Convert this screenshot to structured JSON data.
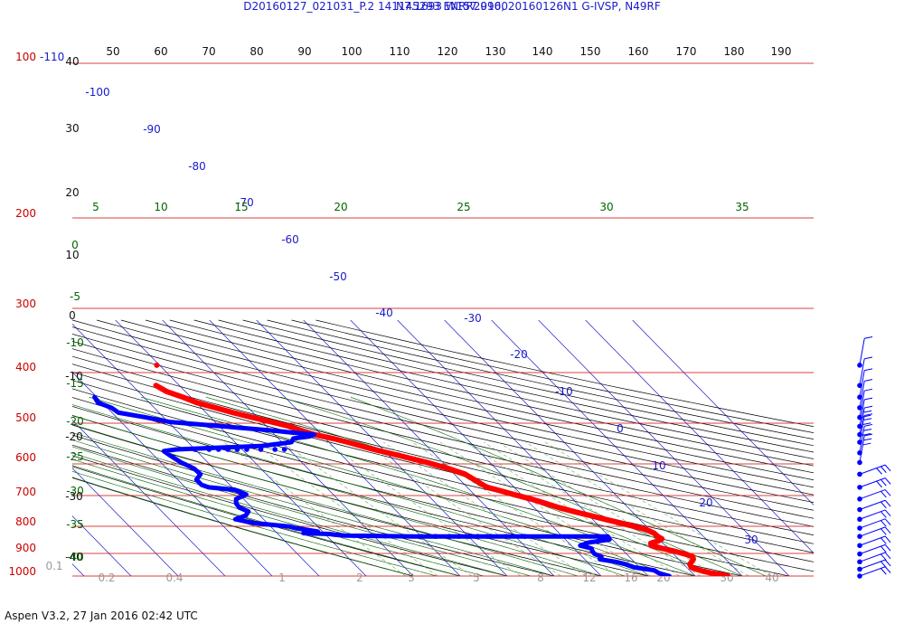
{
  "header": {
    "line1": "D20160127_021031_P.2 141145293 ENRR2016, 20160126N1 G-IVSP, N49RF",
    "line2": "N7.1693 W157.9900"
  },
  "footer": "Aspen V3.2, 27 Jan 2016  02:42 UTC",
  "colors": {
    "temperature": "#ff0000",
    "dewpoint": "#0000ff",
    "isobar": "#cc0000",
    "isotherm": "#1a1acc",
    "dry_adiabat": "#000000",
    "moist_adiabat": "#006600",
    "mixing_ratio": "#66aa66"
  },
  "chart_data": {
    "type": "skew-t",
    "pressure_axis": {
      "unit": "hPa",
      "scale": "log",
      "range": [
        1000,
        100
      ],
      "tick_labels": [
        "1000",
        "900",
        "800",
        "700",
        "600",
        "500",
        "400",
        "300",
        "200",
        "100"
      ],
      "top_extra_label": "-110"
    },
    "temperature_top_ticks": [
      "50",
      "60",
      "70",
      "80",
      "90",
      "100",
      "110",
      "120",
      "130",
      "140",
      "150",
      "160",
      "170",
      "180",
      "190"
    ],
    "isotherm_labels": [
      "-100",
      "-90",
      "-80",
      "-70",
      "-60",
      "-50",
      "-40",
      "-30",
      "-20",
      "-10",
      "0",
      "10",
      "20",
      "30"
    ],
    "dry_adiabat_labels": [
      "40",
      "30",
      "20",
      "10",
      "0",
      "-10",
      "-20",
      "-30",
      "-40"
    ],
    "moist_adiabat_labels": [
      "5",
      "10",
      "15",
      "20",
      "25",
      "30",
      "35"
    ],
    "moist_left_labels": [
      "0",
      "-5",
      "-10",
      "-15",
      "-20",
      "-25",
      "-30",
      "-35",
      "-40"
    ],
    "mixing_ratio_labels": [
      "0.1",
      "0.2",
      "0.4",
      "1",
      "2",
      "3",
      "5",
      "8",
      "12",
      "16",
      "20",
      "30",
      "40"
    ],
    "temperature_profile": [
      [
        1000,
        27.0
      ],
      [
        985,
        25.5
      ],
      [
        970,
        23.8
      ],
      [
        955,
        22.5
      ],
      [
        940,
        21.6
      ],
      [
        925,
        21.0
      ],
      [
        900,
        21.3
      ],
      [
        880,
        22.2
      ],
      [
        860,
        23.1
      ],
      [
        840,
        23.5
      ],
      [
        820,
        22.4
      ],
      [
        800,
        20.8
      ],
      [
        780,
        18.8
      ],
      [
        760,
        17.0
      ],
      [
        745,
        17.4
      ],
      [
        730,
        19.4
      ],
      [
        715,
        20.7
      ],
      [
        700,
        20.3
      ],
      [
        680,
        20.2
      ],
      [
        660,
        19.3
      ],
      [
        640,
        17.4
      ],
      [
        620,
        15.0
      ],
      [
        600,
        12.6
      ],
      [
        580,
        10.3
      ],
      [
        560,
        7.6
      ],
      [
        540,
        5.3
      ],
      [
        520,
        3.3
      ],
      [
        500,
        1.1
      ],
      [
        480,
        -1.6
      ],
      [
        460,
        -4.2
      ],
      [
        450,
        -5.7
      ],
      [
        440,
        -6.2
      ],
      [
        420,
        -6.9
      ],
      [
        400,
        -7.7
      ],
      [
        380,
        -10.1
      ],
      [
        360,
        -13.4
      ],
      [
        340,
        -17.5
      ],
      [
        320,
        -22.0
      ],
      [
        300,
        -26.0
      ],
      [
        290,
        -28.4
      ],
      [
        280,
        -31.5
      ],
      [
        270,
        -33.5
      ],
      [
        260,
        -35.2
      ],
      [
        250,
        -38.0
      ],
      [
        240,
        -41.2
      ],
      [
        230,
        -44.2
      ],
      [
        220,
        -47.0
      ],
      [
        210,
        -49.9
      ],
      [
        200,
        -51.7
      ],
      [
        190,
        -54.0
      ],
      [
        180,
        -55.0
      ]
    ],
    "dewpoint_profile": [
      [
        1000,
        14.5
      ],
      [
        975,
        12.9
      ],
      [
        950,
        12.5
      ],
      [
        925,
        8.8
      ],
      [
        900,
        7.7
      ],
      [
        880,
        6.1
      ],
      [
        860,
        3.2
      ],
      [
        840,
        4.1
      ],
      [
        820,
        3.2
      ],
      [
        800,
        3.3
      ],
      [
        780,
        3.7
      ],
      [
        760,
        1.9
      ],
      [
        740,
        4.3
      ],
      [
        720,
        9.4
      ],
      [
        700,
        9.7
      ],
      [
        700,
        -21.4
      ],
      [
        700,
        -31.6
      ],
      [
        695,
        -46.0
      ],
      [
        690,
        -48.0
      ],
      [
        685,
        -49.0
      ],
      [
        680,
        -54.4
      ],
      [
        670,
        -51.0
      ],
      [
        660,
        -53.0
      ],
      [
        650,
        -55.0
      ],
      [
        640,
        -56.0
      ],
      [
        620,
        -63.0
      ],
      [
        600,
        -66.0
      ],
      [
        580,
        -63.0
      ],
      [
        560,
        -61.6
      ],
      [
        540,
        -62.7
      ],
      [
        520,
        -62.5
      ],
      [
        500,
        -61.6
      ],
      [
        480,
        -58.5
      ],
      [
        460,
        -60.0
      ],
      [
        450,
        -65.0
      ],
      [
        440,
        -66.0
      ],
      [
        420,
        -66.0
      ],
      [
        400,
        -64.0
      ],
      [
        380,
        -64.2
      ],
      [
        360,
        -65.7
      ],
      [
        340,
        -66.5
      ],
      [
        325,
        -67.0
      ],
      [
        320,
        -64.0
      ],
      [
        310,
        -45.0
      ],
      [
        300,
        -38.0
      ],
      [
        290,
        -36.8
      ],
      [
        285,
        -33.0
      ],
      [
        280,
        -31.6
      ],
      [
        275,
        -36.0
      ],
      [
        270,
        -39.6
      ],
      [
        260,
        -49.4
      ],
      [
        250,
        -59.7
      ],
      [
        240,
        -63.8
      ],
      [
        230,
        -68.6
      ],
      [
        220,
        -69.1
      ],
      [
        210,
        -70.9
      ],
      [
        200,
        -70.5
      ]
    ],
    "dewpoint_dotted_700": [
      -30.0,
      -27.0,
      -24.0,
      -22.0,
      -20.0,
      -18.0,
      -16.0,
      -12.0,
      -8.0
    ],
    "dewpoint_dotted_320": [
      -60.0,
      -57.0,
      -55.0,
      -53.0,
      -51.0,
      -49.0,
      -46.0,
      -43.0,
      -41.0
    ],
    "isolated_temperature_point": [
      150,
      -50.6
    ],
    "wind_barbs_pressure": [
      150,
      180,
      200,
      220,
      240,
      260,
      280,
      300,
      330,
      360,
      400,
      450,
      500,
      550,
      600,
      650,
      700,
      760,
      820,
      880,
      940,
      1000
    ]
  }
}
